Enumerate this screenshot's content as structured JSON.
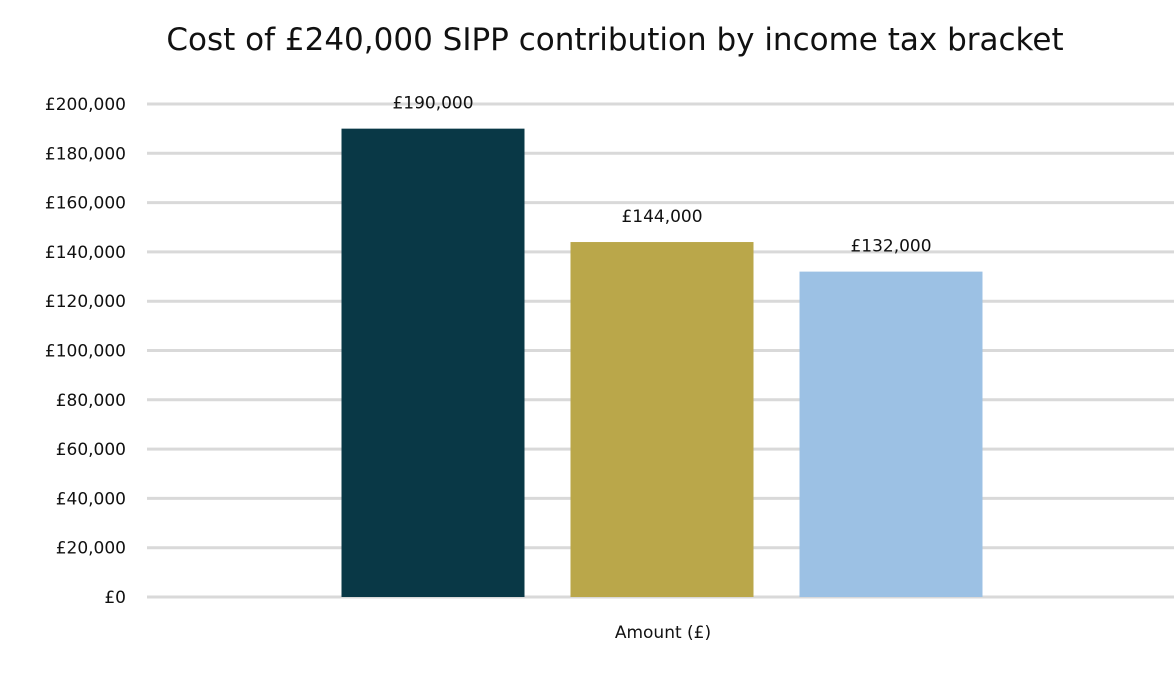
{
  "chart_data": {
    "type": "bar",
    "title": "Cost of £240,000 SIPP contribution by income tax bracket",
    "xlabel": "Amount (£)",
    "ylabel": "",
    "categories": [
      "Amount (£)"
    ],
    "series": [
      {
        "values": [
          190000
        ],
        "color": "#093846",
        "label": "£190,000"
      },
      {
        "values": [
          144000
        ],
        "color": "#BAA74A",
        "label": "£144,000"
      },
      {
        "values": [
          132000
        ],
        "color": "#9CC1E4",
        "label": "£132,000"
      }
    ],
    "ylim": [
      0,
      200000
    ],
    "yticks": [
      {
        "value": 0,
        "label": "£0"
      },
      {
        "value": 20000,
        "label": "£20,000"
      },
      {
        "value": 40000,
        "label": "£40,000"
      },
      {
        "value": 60000,
        "label": "£60,000"
      },
      {
        "value": 80000,
        "label": "£80,000"
      },
      {
        "value": 100000,
        "label": "£100,000"
      },
      {
        "value": 120000,
        "label": "£120,000"
      },
      {
        "value": 140000,
        "label": "£140,000"
      },
      {
        "value": 160000,
        "label": "£160,000"
      },
      {
        "value": 180000,
        "label": "£180,000"
      },
      {
        "value": 200000,
        "label": "£200,000"
      }
    ],
    "grid": true,
    "legend": "none"
  }
}
